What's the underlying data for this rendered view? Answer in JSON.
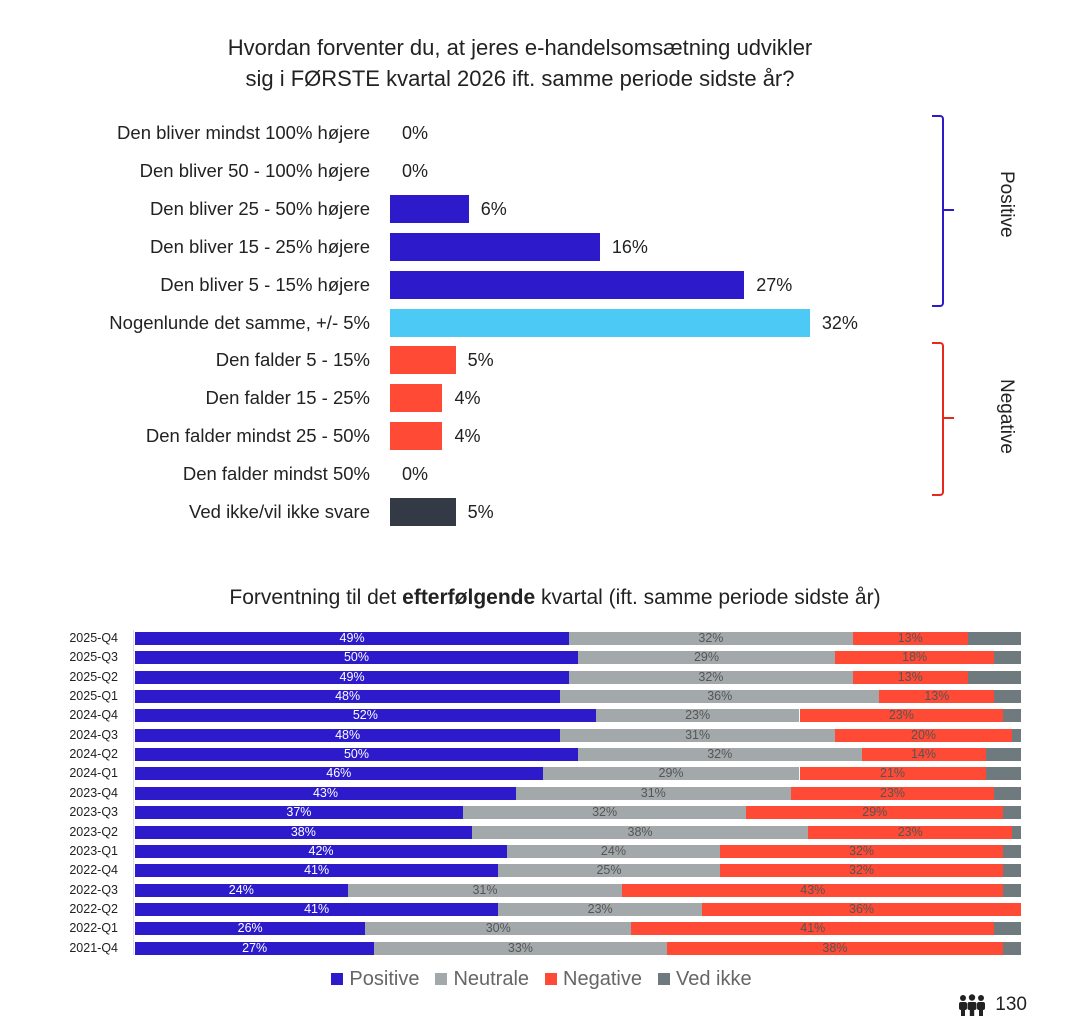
{
  "chart_data": [
    {
      "type": "bar",
      "orientation": "horizontal",
      "title": "Hvordan forventer du, at jeres e-handelsomsætning udvikler sig i FØRSTE kvartal 2026 ift. samme periode sidste år?",
      "title_lines": [
        "Hvordan forventer du, at jeres e-handelsomsætning udvikler",
        "sig i FØRSTE kvartal 2026 ift. samme periode sidste år?"
      ],
      "categories": [
        "Den bliver mindst 100% højere",
        "Den bliver 50 - 100% højere",
        "Den bliver 25 - 50% højere",
        "Den bliver 15 - 25% højere",
        "Den bliver 5 - 15% højere",
        "Nogenlunde det samme, +/- 5%",
        "Den falder 5 - 15%",
        "Den falder 15 - 25%",
        "Den falder mindst 25 - 50%",
        "Den falder mindst 50%",
        "Ved ikke/vil ikke svare"
      ],
      "values": [
        0,
        0,
        6,
        16,
        27,
        32,
        5,
        4,
        4,
        0,
        5
      ],
      "labels": [
        "0%",
        "0%",
        "6%",
        "16%",
        "27%",
        "32%",
        "5%",
        "4%",
        "4%",
        "0%",
        "5%"
      ],
      "colors": [
        "#2c1acb",
        "#2c1acb",
        "#2c1acb",
        "#2c1acb",
        "#2c1acb",
        "#4dc9f6",
        "#ff4a36",
        "#ff4a36",
        "#ff4a36",
        "#ff4a36",
        "#343a45"
      ],
      "groups": [
        {
          "label": "Positive",
          "from": 0,
          "to": 4,
          "color": "#2c1acb"
        },
        {
          "label": "Negative",
          "from": 6,
          "to": 9,
          "color": "#e8281c"
        }
      ],
      "unit": "%"
    },
    {
      "type": "bar",
      "stacked": true,
      "orientation": "horizontal",
      "title_pre": "Forventning til det ",
      "title_bold": "efterfølgende",
      "title_post": " kvartal (ift. samme periode sidste år)",
      "categories": [
        "2025-Q4",
        "2025-Q3",
        "2025-Q2",
        "2025-Q1",
        "2024-Q4",
        "2024-Q3",
        "2024-Q2",
        "2024-Q1",
        "2023-Q4",
        "2023-Q3",
        "2023-Q2",
        "2023-Q1",
        "2022-Q4",
        "2022-Q3",
        "2022-Q2",
        "2022-Q1",
        "2021-Q4"
      ],
      "series": [
        {
          "name": "Positive",
          "color": "#2c1acb",
          "label_color": "#ffffff",
          "values": [
            49,
            50,
            49,
            48,
            52,
            48,
            50,
            46,
            43,
            37,
            38,
            42,
            41,
            24,
            41,
            26,
            27
          ]
        },
        {
          "name": "Neutrale",
          "color": "#a3a9ab",
          "label_color": "#555555",
          "values": [
            32,
            29,
            32,
            36,
            23,
            31,
            32,
            29,
            31,
            32,
            38,
            24,
            25,
            31,
            23,
            30,
            33
          ]
        },
        {
          "name": "Negative",
          "color": "#ff4a36",
          "label_color": "#555555",
          "values": [
            13,
            18,
            13,
            13,
            23,
            20,
            14,
            21,
            23,
            29,
            23,
            32,
            32,
            43,
            36,
            41,
            38
          ]
        },
        {
          "name": "Ved ikke",
          "color": "#6f7a7e",
          "label_color": null,
          "values": [
            6,
            3,
            6,
            3,
            2,
            1,
            4,
            4,
            3,
            2,
            1,
            2,
            2,
            2,
            0,
            3,
            2
          ]
        }
      ],
      "legend": "bottom",
      "unit": "%"
    }
  ],
  "page_number": "130",
  "page_icon": "people-icon"
}
